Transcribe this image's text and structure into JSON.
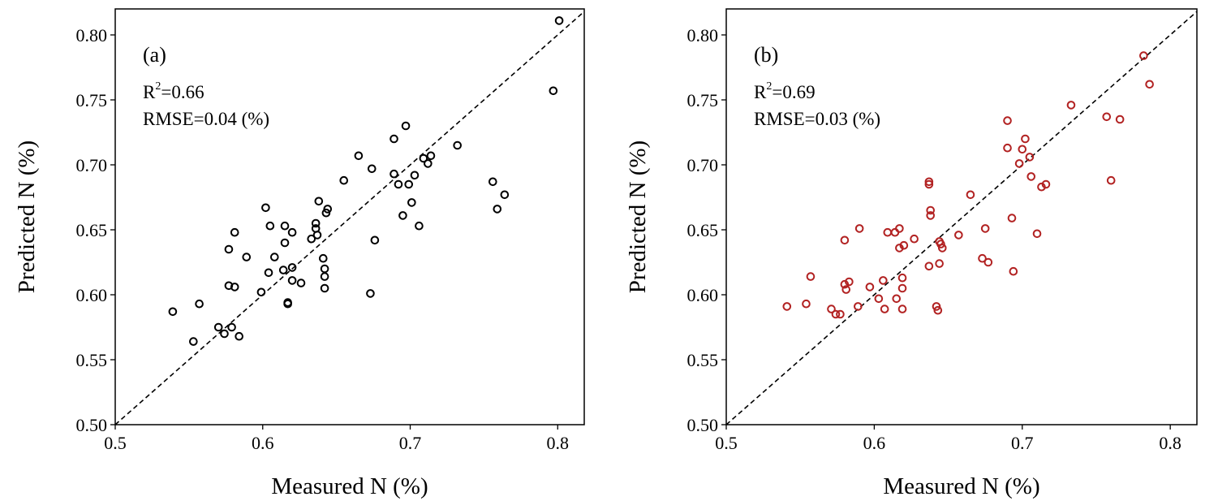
{
  "chart_data": [
    {
      "type": "scatter",
      "panel_label": "(a)",
      "r2_prefix": "R",
      "r2_sup": "2",
      "r2_value": "=0.66",
      "rmse": "RMSE=0.04 (%)",
      "xlabel": "Measured N (%)",
      "ylabel": "Predicted N (%)",
      "xlim": [
        0.5,
        0.818
      ],
      "ylim": [
        0.5,
        0.82
      ],
      "xticks": [
        "0.5",
        "0.6",
        "0.7",
        "0.8"
      ],
      "yticks": [
        "0.50",
        "0.55",
        "0.60",
        "0.65",
        "0.70",
        "0.75",
        "0.80"
      ],
      "reference_line": "1:1 dashed",
      "marker_color": "#000000",
      "grid": false,
      "points": [
        [
          0.801,
          0.811
        ],
        [
          0.797,
          0.757
        ],
        [
          0.697,
          0.73
        ],
        [
          0.732,
          0.715
        ],
        [
          0.665,
          0.707
        ],
        [
          0.689,
          0.72
        ],
        [
          0.714,
          0.707
        ],
        [
          0.709,
          0.705
        ],
        [
          0.712,
          0.701
        ],
        [
          0.674,
          0.697
        ],
        [
          0.689,
          0.693
        ],
        [
          0.703,
          0.692
        ],
        [
          0.692,
          0.685
        ],
        [
          0.699,
          0.685
        ],
        [
          0.655,
          0.688
        ],
        [
          0.756,
          0.687
        ],
        [
          0.764,
          0.677
        ],
        [
          0.701,
          0.671
        ],
        [
          0.759,
          0.666
        ],
        [
          0.695,
          0.661
        ],
        [
          0.706,
          0.653
        ],
        [
          0.676,
          0.642
        ],
        [
          0.602,
          0.667
        ],
        [
          0.638,
          0.672
        ],
        [
          0.644,
          0.666
        ],
        [
          0.643,
          0.663
        ],
        [
          0.605,
          0.653
        ],
        [
          0.615,
          0.653
        ],
        [
          0.636,
          0.655
        ],
        [
          0.636,
          0.651
        ],
        [
          0.581,
          0.648
        ],
        [
          0.62,
          0.648
        ],
        [
          0.637,
          0.646
        ],
        [
          0.633,
          0.643
        ],
        [
          0.615,
          0.64
        ],
        [
          0.577,
          0.635
        ],
        [
          0.589,
          0.629
        ],
        [
          0.608,
          0.629
        ],
        [
          0.641,
          0.628
        ],
        [
          0.62,
          0.621
        ],
        [
          0.614,
          0.619
        ],
        [
          0.604,
          0.617
        ],
        [
          0.642,
          0.62
        ],
        [
          0.642,
          0.614
        ],
        [
          0.62,
          0.611
        ],
        [
          0.626,
          0.609
        ],
        [
          0.577,
          0.607
        ],
        [
          0.581,
          0.606
        ],
        [
          0.642,
          0.605
        ],
        [
          0.599,
          0.602
        ],
        [
          0.673,
          0.601
        ],
        [
          0.557,
          0.593
        ],
        [
          0.617,
          0.594
        ],
        [
          0.617,
          0.593
        ],
        [
          0.539,
          0.587
        ],
        [
          0.57,
          0.575
        ],
        [
          0.579,
          0.575
        ],
        [
          0.574,
          0.57
        ],
        [
          0.584,
          0.568
        ],
        [
          0.553,
          0.564
        ]
      ]
    },
    {
      "type": "scatter",
      "panel_label": "(b)",
      "r2_prefix": "R",
      "r2_sup": "2",
      "r2_value": "=0.69",
      "rmse": "RMSE=0.03 (%)",
      "xlabel": "Measured N (%)",
      "ylabel": "Predicted N (%)",
      "xlim": [
        0.5,
        0.818
      ],
      "ylim": [
        0.5,
        0.82
      ],
      "xticks": [
        "0.5",
        "0.6",
        "0.7",
        "0.8"
      ],
      "yticks": [
        "0.50",
        "0.55",
        "0.60",
        "0.65",
        "0.70",
        "0.75",
        "0.80"
      ],
      "reference_line": "1:1 dashed",
      "marker_color": "#b22222",
      "grid": false,
      "points": [
        [
          0.782,
          0.784
        ],
        [
          0.786,
          0.762
        ],
        [
          0.733,
          0.746
        ],
        [
          0.757,
          0.737
        ],
        [
          0.766,
          0.735
        ],
        [
          0.69,
          0.734
        ],
        [
          0.702,
          0.72
        ],
        [
          0.7,
          0.712
        ],
        [
          0.69,
          0.713
        ],
        [
          0.705,
          0.706
        ],
        [
          0.698,
          0.701
        ],
        [
          0.706,
          0.691
        ],
        [
          0.716,
          0.685
        ],
        [
          0.713,
          0.683
        ],
        [
          0.76,
          0.688
        ],
        [
          0.665,
          0.677
        ],
        [
          0.637,
          0.687
        ],
        [
          0.637,
          0.685
        ],
        [
          0.638,
          0.665
        ],
        [
          0.638,
          0.661
        ],
        [
          0.693,
          0.659
        ],
        [
          0.675,
          0.651
        ],
        [
          0.59,
          0.651
        ],
        [
          0.617,
          0.651
        ],
        [
          0.609,
          0.648
        ],
        [
          0.614,
          0.648
        ],
        [
          0.657,
          0.646
        ],
        [
          0.71,
          0.647
        ],
        [
          0.58,
          0.642
        ],
        [
          0.627,
          0.643
        ],
        [
          0.644,
          0.641
        ],
        [
          0.645,
          0.639
        ],
        [
          0.646,
          0.636
        ],
        [
          0.62,
          0.638
        ],
        [
          0.617,
          0.636
        ],
        [
          0.673,
          0.628
        ],
        [
          0.677,
          0.625
        ],
        [
          0.644,
          0.624
        ],
        [
          0.637,
          0.622
        ],
        [
          0.694,
          0.618
        ],
        [
          0.557,
          0.614
        ],
        [
          0.619,
          0.613
        ],
        [
          0.606,
          0.611
        ],
        [
          0.583,
          0.61
        ],
        [
          0.58,
          0.608
        ],
        [
          0.581,
          0.604
        ],
        [
          0.619,
          0.605
        ],
        [
          0.597,
          0.606
        ],
        [
          0.603,
          0.597
        ],
        [
          0.615,
          0.597
        ],
        [
          0.554,
          0.593
        ],
        [
          0.541,
          0.591
        ],
        [
          0.589,
          0.591
        ],
        [
          0.607,
          0.589
        ],
        [
          0.619,
          0.589
        ],
        [
          0.642,
          0.591
        ],
        [
          0.643,
          0.588
        ],
        [
          0.571,
          0.589
        ],
        [
          0.574,
          0.585
        ],
        [
          0.577,
          0.585
        ]
      ]
    }
  ]
}
